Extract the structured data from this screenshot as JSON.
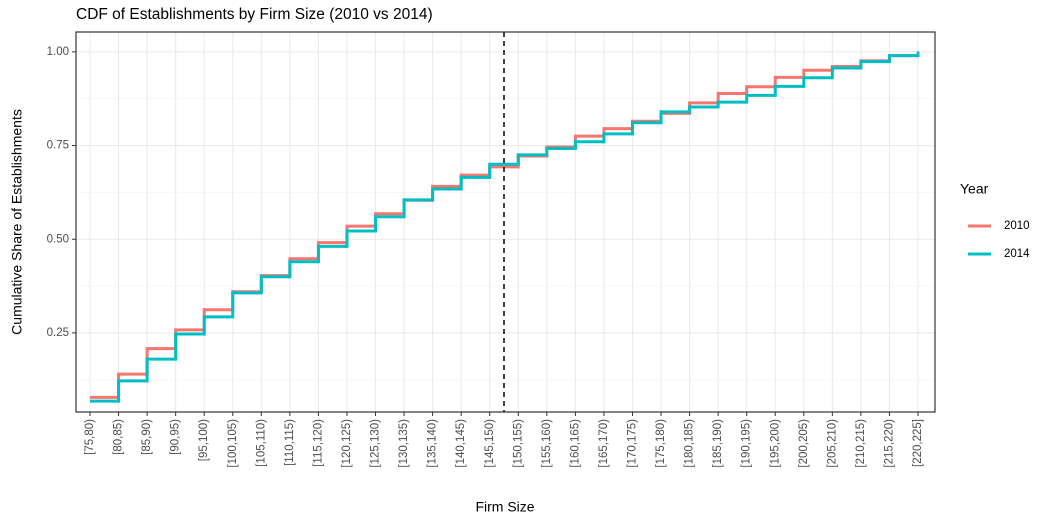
{
  "chart_data": {
    "type": "step",
    "title": "CDF of Establishments by Firm Size (2010 vs 2014)",
    "x_label": "Firm Size",
    "y_label": "Cumulative Share of Establishments",
    "legend_title": "Year",
    "legend_position": "right",
    "grid": true,
    "categories": [
      "[75,80)",
      "[80,85)",
      "[85,90)",
      "[90,95)",
      "[95,100)",
      "[100,105)",
      "[105,110)",
      "[110,115)",
      "[115,120)",
      "[120,125)",
      "[125,130)",
      "[130,135)",
      "[135,140)",
      "[140,145)",
      "[145,150)",
      "[150,155)",
      "[155,160)",
      "[160,165)",
      "[165,170)",
      "[170,175)",
      "[175,180)",
      "[180,185)",
      "[185,190)",
      "[190,195)",
      "[195,200)",
      "[200,205)",
      "[205,210)",
      "[210,215)",
      "[215,220)",
      "[220,225]"
    ],
    "series": [
      {
        "name": "2010",
        "color": "#F8766D",
        "values": [
          0.078,
          0.14,
          0.208,
          0.258,
          0.312,
          0.36,
          0.403,
          0.448,
          0.491,
          0.535,
          0.568,
          0.604,
          0.641,
          0.671,
          0.693,
          0.722,
          0.746,
          0.775,
          0.795,
          0.815,
          0.836,
          0.864,
          0.889,
          0.907,
          0.932,
          0.951,
          0.961,
          0.976,
          0.99,
          0.997
        ]
      },
      {
        "name": "2014",
        "color": "#00BFC4",
        "values": [
          0.068,
          0.122,
          0.18,
          0.247,
          0.293,
          0.357,
          0.4,
          0.44,
          0.481,
          0.522,
          0.56,
          0.605,
          0.634,
          0.665,
          0.7,
          0.725,
          0.742,
          0.76,
          0.781,
          0.811,
          0.84,
          0.853,
          0.866,
          0.884,
          0.908,
          0.931,
          0.957,
          0.974,
          0.99,
          0.997
        ]
      }
    ],
    "ylim": [
      0.039,
      1.053
    ],
    "yticks": [
      {
        "value": 0.25,
        "label": "0.25"
      },
      {
        "value": 0.5,
        "label": "0.50"
      },
      {
        "value": 0.75,
        "label": "0.75"
      },
      {
        "value": 1,
        "label": "1.00"
      }
    ],
    "vline": {
      "x": 14.5,
      "linetype": "dashed",
      "color": "#000000"
    }
  }
}
